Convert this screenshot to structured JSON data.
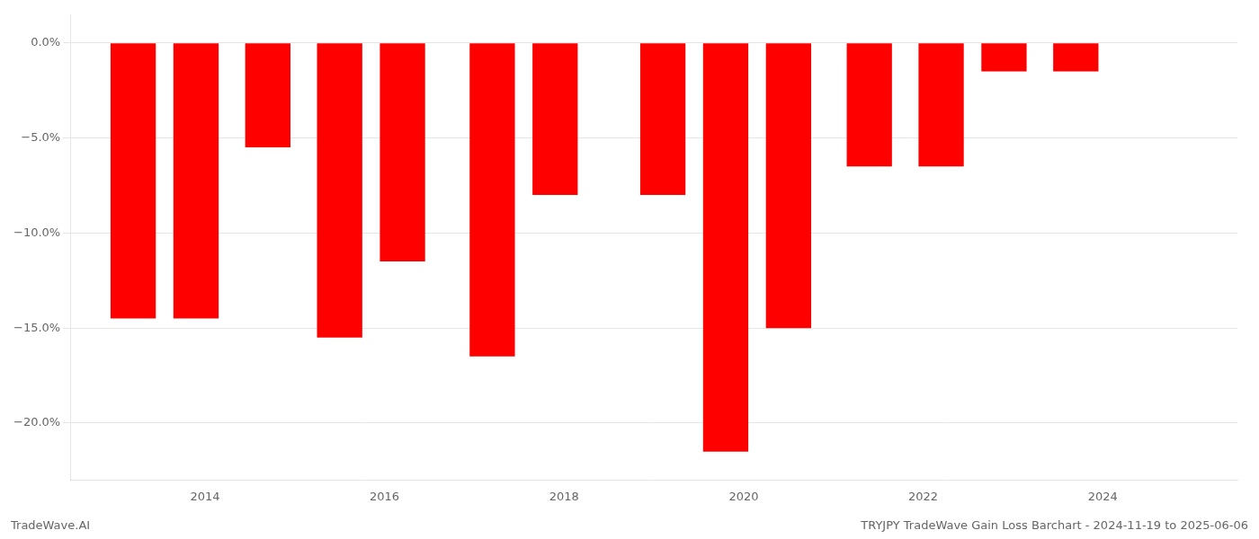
{
  "chart_data": {
    "type": "bar",
    "x": [
      2013.2,
      2013.9,
      2014.7,
      2015.5,
      2016.2,
      2017.2,
      2017.9,
      2019.1,
      2019.8,
      2020.5,
      2021.4,
      2022.2,
      2022.9,
      2023.7
    ],
    "values": [
      -14.5,
      -14.5,
      -5.5,
      -15.5,
      -11.5,
      -16.5,
      -8.0,
      -8.0,
      -21.5,
      -15.0,
      -6.5,
      -6.5,
      -1.5,
      -1.5
    ],
    "color": "#ff0000",
    "xlim": [
      2012.5,
      2025.5
    ],
    "xticks": [
      2014,
      2016,
      2018,
      2020,
      2022,
      2024
    ],
    "ylim": [
      -23,
      1.5
    ],
    "yticks": [
      {
        "value": 0.0,
        "label": "0.0%"
      },
      {
        "value": -5.0,
        "label": "−5.0%"
      },
      {
        "value": -10.0,
        "label": "−10.0%"
      },
      {
        "value": -15.0,
        "label": "−15.0%"
      },
      {
        "value": -20.0,
        "label": "−20.0%"
      }
    ],
    "grid": true,
    "annotations": [
      "TradeWave.AI",
      "TRYJPY TradeWave Gain Loss Barchart - 2024-11-19 to 2025-06-06"
    ]
  }
}
